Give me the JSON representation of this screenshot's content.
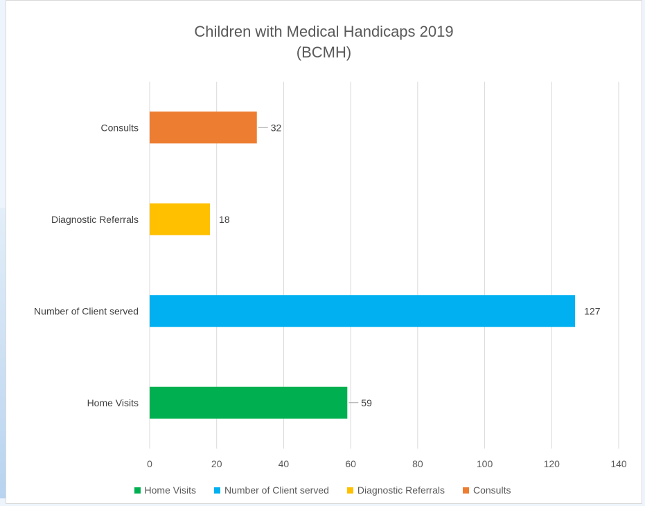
{
  "chart_data": {
    "type": "bar",
    "orientation": "horizontal",
    "title": "Children with Medical Handicaps 2019",
    "subtitle": "(BCMH)",
    "xlabel": "",
    "ylabel": "",
    "xlim": [
      0,
      140
    ],
    "xticks": [
      0,
      20,
      40,
      60,
      80,
      100,
      120,
      140
    ],
    "grid": true,
    "legend_position": "bottom",
    "categories": [
      "Home Visits",
      "Number of Client served",
      "Diagnostic Referrals",
      "Consults"
    ],
    "values": [
      59,
      127,
      18,
      32
    ],
    "colors": [
      "#00b050",
      "#00b0f0",
      "#ffc000",
      "#ed7d31"
    ],
    "data_labels": [
      "59",
      "127",
      "18",
      "32"
    ]
  }
}
